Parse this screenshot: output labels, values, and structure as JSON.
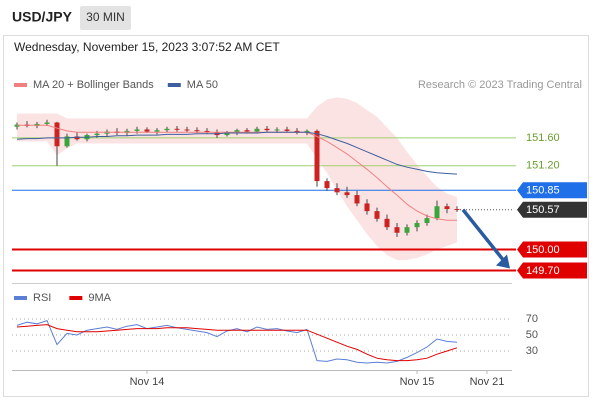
{
  "header": {
    "symbol": "USD/JPY",
    "interval": "30 MIN",
    "timestamp": "Wednesday, November 15, 2023 3:07:52 AM CET"
  },
  "chart_data": [
    {
      "type": "candlestick",
      "credit": "Research © 2023 Trading Central",
      "up_color": "#3aa53a",
      "down_color": "#cc2222",
      "open": [
        151.76,
        151.79,
        151.77,
        151.8,
        151.82,
        151.48,
        151.62,
        151.58,
        151.64,
        151.66,
        151.69,
        151.67,
        151.7,
        151.72,
        151.69,
        151.71,
        151.73,
        151.72,
        151.71,
        151.7,
        151.68,
        151.64,
        151.68,
        151.71,
        151.69,
        151.73,
        151.71,
        151.72,
        151.7,
        151.68,
        151.7,
        150.98,
        150.88,
        150.82,
        150.78,
        150.66,
        150.55,
        150.44,
        150.32,
        150.24,
        150.32,
        150.38,
        150.45,
        150.62,
        150.58
      ],
      "high": [
        151.82,
        151.84,
        151.83,
        151.86,
        151.83,
        151.66,
        151.68,
        151.66,
        151.7,
        151.72,
        151.74,
        151.73,
        151.76,
        151.75,
        151.74,
        151.76,
        151.77,
        151.76,
        151.75,
        151.74,
        151.72,
        151.7,
        151.73,
        151.74,
        151.76,
        151.77,
        151.75,
        151.76,
        151.74,
        151.72,
        151.72,
        151.02,
        150.95,
        150.9,
        150.84,
        150.72,
        150.6,
        150.5,
        150.38,
        150.36,
        150.42,
        150.5,
        150.7,
        150.66,
        150.62
      ],
      "low": [
        151.72,
        151.75,
        151.74,
        151.77,
        151.2,
        151.46,
        151.56,
        151.55,
        151.6,
        151.62,
        151.64,
        151.63,
        151.66,
        151.67,
        151.65,
        151.68,
        151.69,
        151.68,
        151.67,
        151.66,
        151.6,
        151.62,
        151.64,
        151.66,
        151.66,
        151.69,
        151.67,
        151.68,
        151.65,
        151.64,
        150.9,
        150.84,
        150.78,
        150.74,
        150.62,
        150.5,
        150.4,
        150.28,
        150.18,
        150.2,
        150.26,
        150.34,
        150.42,
        150.52,
        150.54
      ],
      "close": [
        151.79,
        151.77,
        151.8,
        151.82,
        151.48,
        151.62,
        151.58,
        151.64,
        151.66,
        151.69,
        151.67,
        151.7,
        151.72,
        151.69,
        151.71,
        151.73,
        151.72,
        151.71,
        151.7,
        151.68,
        151.64,
        151.68,
        151.71,
        151.69,
        151.73,
        151.71,
        151.72,
        151.7,
        151.68,
        151.7,
        150.98,
        150.88,
        150.82,
        150.78,
        150.66,
        150.55,
        150.44,
        150.32,
        150.24,
        150.32,
        150.38,
        150.45,
        150.62,
        150.58,
        150.57
      ],
      "bollinger_upper": [
        151.95,
        151.95,
        151.95,
        151.95,
        151.95,
        151.88,
        151.88,
        151.88,
        151.88,
        151.88,
        151.88,
        151.88,
        151.88,
        151.88,
        151.88,
        151.88,
        151.88,
        151.88,
        151.88,
        151.88,
        151.88,
        151.88,
        151.88,
        151.88,
        151.88,
        151.88,
        151.88,
        151.88,
        151.88,
        151.88,
        152.05,
        152.15,
        152.18,
        152.16,
        152.1,
        152.0,
        151.9,
        151.75,
        151.6,
        151.4,
        151.22,
        151.05,
        150.9,
        150.8,
        150.75
      ],
      "bollinger_lower": [
        151.55,
        151.55,
        151.55,
        151.55,
        151.35,
        151.45,
        151.52,
        151.52,
        151.52,
        151.52,
        151.52,
        151.52,
        151.52,
        151.52,
        151.52,
        151.52,
        151.52,
        151.52,
        151.52,
        151.52,
        151.52,
        151.52,
        151.52,
        151.52,
        151.52,
        151.52,
        151.52,
        151.52,
        151.52,
        151.52,
        151.3,
        151.1,
        150.85,
        150.62,
        150.42,
        150.22,
        150.05,
        149.92,
        149.85,
        149.85,
        149.88,
        149.93,
        150.0,
        150.05,
        150.1
      ],
      "bollinger_color": "#fbdcdc",
      "series": [
        {
          "name": "MA 20 + Bollinger Bands",
          "color": "#f08080",
          "values": [
            151.78,
            151.78,
            151.78,
            151.78,
            151.74,
            151.7,
            151.68,
            151.68,
            151.68,
            151.68,
            151.68,
            151.68,
            151.68,
            151.68,
            151.68,
            151.68,
            151.68,
            151.68,
            151.68,
            151.68,
            151.68,
            151.68,
            151.68,
            151.68,
            151.68,
            151.68,
            151.68,
            151.68,
            151.68,
            151.68,
            151.62,
            151.55,
            151.46,
            151.37,
            151.26,
            151.15,
            151.03,
            150.9,
            150.78,
            150.65,
            150.55,
            150.48,
            150.44,
            150.42,
            150.42
          ]
        },
        {
          "name": "MA 50",
          "color": "#3d5f9e",
          "values": [
            151.58,
            151.59,
            151.59,
            151.6,
            151.6,
            151.6,
            151.61,
            151.61,
            151.62,
            151.62,
            151.63,
            151.63,
            151.64,
            151.64,
            151.64,
            151.65,
            151.65,
            151.65,
            151.66,
            151.66,
            151.66,
            151.67,
            151.67,
            151.67,
            151.67,
            151.68,
            151.68,
            151.68,
            151.68,
            151.68,
            151.66,
            151.62,
            151.57,
            151.52,
            151.46,
            151.4,
            151.34,
            151.28,
            151.22,
            151.18,
            151.15,
            151.12,
            151.1,
            151.09,
            151.08
          ]
        }
      ],
      "levels": [
        {
          "value": 151.6,
          "label": "151.60",
          "color": "#9fcf6f",
          "style": "text"
        },
        {
          "value": 151.2,
          "label": "151.20",
          "color": "#9fcf6f",
          "style": "text"
        },
        {
          "value": 150.85,
          "label": "150.85",
          "color": "#1e6fe8",
          "style": "tag"
        },
        {
          "value": 150.57,
          "label": "150.57",
          "color": "#333333",
          "style": "dotted"
        },
        {
          "value": 150.0,
          "label": "150.00",
          "color": "#e00000",
          "style": "tag"
        },
        {
          "value": 149.7,
          "label": "149.70",
          "color": "#e00000",
          "style": "tag"
        }
      ],
      "xlim": [
        -0.5,
        49.5
      ],
      "ylim": [
        149.52,
        152.2
      ]
    },
    {
      "type": "line",
      "series": [
        {
          "name": "RSI",
          "color": "#5b7fd6",
          "values": [
            62,
            66,
            64,
            68,
            38,
            52,
            50,
            56,
            58,
            60,
            57,
            61,
            63,
            58,
            60,
            62,
            59,
            57,
            55,
            53,
            48,
            55,
            58,
            54,
            60,
            57,
            58,
            55,
            53,
            57,
            18,
            17,
            20,
            19,
            16,
            15,
            16,
            15,
            17,
            22,
            28,
            35,
            45,
            42,
            41
          ]
        },
        {
          "name": "9MA",
          "color": "#e00000",
          "values": [
            60,
            61,
            62,
            63,
            58,
            56,
            54,
            54,
            54,
            55,
            56,
            57,
            58,
            58,
            58,
            59,
            59,
            59,
            58,
            57,
            56,
            56,
            56,
            56,
            56,
            56,
            56,
            56,
            56,
            56,
            51,
            46,
            41,
            36,
            32,
            26,
            21,
            19,
            18,
            18,
            19,
            21,
            26,
            30,
            34
          ]
        }
      ],
      "xlim": [
        -0.5,
        49.5
      ],
      "ylim": [
        8.75,
        93.75
      ],
      "yticks": [
        70,
        50,
        30
      ],
      "xticks": [
        {
          "value": 13,
          "label": "Nov 14"
        },
        {
          "value": 40,
          "label": "Nov 15"
        },
        {
          "value": 47,
          "label": "Nov 21"
        }
      ]
    }
  ]
}
